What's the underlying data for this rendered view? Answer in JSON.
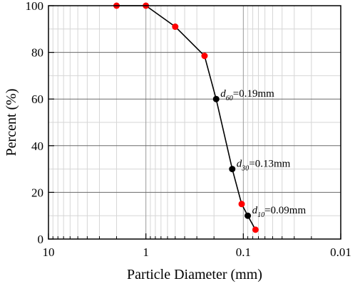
{
  "chart_data": {
    "type": "line",
    "xlabel": "Particle Diameter (mm)",
    "ylabel": "Percent (%)",
    "x_scale": "log",
    "x_reversed": true,
    "xlim": [
      10,
      0.01
    ],
    "ylim": [
      0,
      100
    ],
    "x_ticks": [
      {
        "value": 10,
        "label": "10"
      },
      {
        "value": 1,
        "label": "1"
      },
      {
        "value": 0.1,
        "label": "0.1"
      },
      {
        "value": 0.01,
        "label": "0.01"
      }
    ],
    "y_ticks": [
      {
        "value": 0,
        "label": "0"
      },
      {
        "value": 20,
        "label": "20"
      },
      {
        "value": 40,
        "label": "40"
      },
      {
        "value": 60,
        "label": "60"
      },
      {
        "value": 80,
        "label": "80"
      },
      {
        "value": 100,
        "label": "100"
      }
    ],
    "grid": true,
    "series": [
      {
        "color": "#000000",
        "points": [
          {
            "x": 2,
            "y": 100,
            "marker": "#ff0000"
          },
          {
            "x": 1,
            "y": 100,
            "marker": "#ff0000"
          },
          {
            "x": 0.5,
            "y": 91,
            "marker": "#ff0000"
          },
          {
            "x": 0.25,
            "y": 78.5,
            "marker": "#ff0000"
          },
          {
            "x": 0.19,
            "y": 60,
            "marker": "#000000"
          },
          {
            "x": 0.13,
            "y": 30,
            "marker": "#000000"
          },
          {
            "x": 0.104,
            "y": 15,
            "marker": "#ff0000"
          },
          {
            "x": 0.09,
            "y": 10,
            "marker": "#000000"
          },
          {
            "x": 0.075,
            "y": 4,
            "marker": "#ff0000"
          }
        ]
      }
    ],
    "annotations": [
      {
        "d": "d",
        "sub": "60",
        "value": "=0.19mm",
        "x": 0.19,
        "y": 60
      },
      {
        "d": "d",
        "sub": "30",
        "value": "=0.13mm",
        "x": 0.13,
        "y": 30
      },
      {
        "d": "d",
        "sub": "10",
        "value": "=0.09mm",
        "x": 0.09,
        "y": 10
      }
    ]
  }
}
